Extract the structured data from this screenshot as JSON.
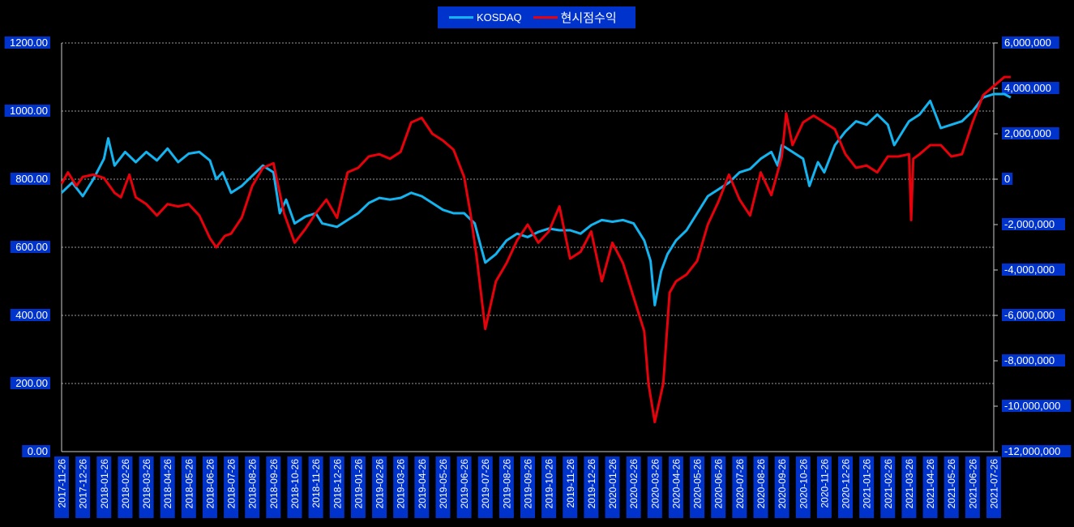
{
  "chart_data": {
    "type": "line",
    "title": "",
    "legend_position": "top-center",
    "grid": true,
    "colors": {
      "background": "#000000",
      "label_box": "#0033cc",
      "KOSDAQ": "#14b4f0",
      "현시점수익": "#e8000b",
      "grid": "#d0d0d0"
    },
    "y_left": {
      "ylim": [
        0,
        1200
      ],
      "ticks": [
        "0.00",
        "200.00",
        "400.00",
        "600.00",
        "800.00",
        "1000.00",
        "1200.00"
      ]
    },
    "y_right": {
      "ylim": [
        -12000000,
        6000000
      ],
      "ticks": [
        "-12,000,000",
        "-10,000,000",
        "-8,000,000",
        "-6,000,000",
        "-4,000,000",
        "-2,000,000",
        "0",
        "2,000,000",
        "4,000,000",
        "6,000,000"
      ]
    },
    "x_ticks": [
      "2017-11-26",
      "2017-12-26",
      "2018-01-26",
      "2018-02-26",
      "2018-03-26",
      "2018-04-26",
      "2018-05-26",
      "2018-06-26",
      "2018-07-26",
      "2018-08-26",
      "2018-09-26",
      "2018-10-26",
      "2018-11-26",
      "2018-12-26",
      "2019-01-26",
      "2019-02-26",
      "2019-03-26",
      "2019-04-26",
      "2019-05-26",
      "2019-06-26",
      "2019-07-26",
      "2019-08-26",
      "2019-09-26",
      "2019-10-26",
      "2019-11-26",
      "2019-12-26",
      "2020-01-26",
      "2020-02-26",
      "2020-03-26",
      "2020-04-26",
      "2020-05-26",
      "2020-06-26",
      "2020-07-26",
      "2020-08-26",
      "2020-09-26",
      "2020-10-26",
      "2020-11-26",
      "2020-12-26",
      "2021-01-26",
      "2021-02-26",
      "2021-03-26",
      "2021-04-26",
      "2021-05-26",
      "2021-06-26",
      "2021-07-26"
    ],
    "series": [
      {
        "name": "KOSDAQ",
        "axis": "left",
        "color": "#14b4f0",
        "points": [
          [
            0,
            760
          ],
          [
            0.5,
            790
          ],
          [
            1,
            750
          ],
          [
            1.5,
            800
          ],
          [
            2,
            860
          ],
          [
            2.2,
            920
          ],
          [
            2.5,
            840
          ],
          [
            3,
            880
          ],
          [
            3.5,
            850
          ],
          [
            4,
            880
          ],
          [
            4.5,
            855
          ],
          [
            5,
            890
          ],
          [
            5.5,
            850
          ],
          [
            6,
            875
          ],
          [
            6.5,
            880
          ],
          [
            7,
            855
          ],
          [
            7.3,
            800
          ],
          [
            7.6,
            820
          ],
          [
            8,
            760
          ],
          [
            8.5,
            780
          ],
          [
            9,
            810
          ],
          [
            9.5,
            840
          ],
          [
            10,
            820
          ],
          [
            10.3,
            700
          ],
          [
            10.6,
            740
          ],
          [
            11,
            670
          ],
          [
            11.5,
            690
          ],
          [
            12,
            700
          ],
          [
            12.3,
            670
          ],
          [
            13,
            660
          ],
          [
            13.5,
            680
          ],
          [
            14,
            700
          ],
          [
            14.5,
            730
          ],
          [
            15,
            745
          ],
          [
            15.5,
            740
          ],
          [
            16,
            745
          ],
          [
            16.5,
            760
          ],
          [
            17,
            750
          ],
          [
            17.5,
            730
          ],
          [
            18,
            710
          ],
          [
            18.5,
            700
          ],
          [
            19,
            700
          ],
          [
            19.5,
            670
          ],
          [
            19.8,
            600
          ],
          [
            20,
            555
          ],
          [
            20.5,
            580
          ],
          [
            21,
            620
          ],
          [
            21.5,
            640
          ],
          [
            22,
            630
          ],
          [
            22.5,
            645
          ],
          [
            23,
            655
          ],
          [
            23.5,
            650
          ],
          [
            24,
            650
          ],
          [
            24.5,
            640
          ],
          [
            25,
            665
          ],
          [
            25.5,
            680
          ],
          [
            26,
            675
          ],
          [
            26.5,
            680
          ],
          [
            27,
            670
          ],
          [
            27.5,
            620
          ],
          [
            27.8,
            560
          ],
          [
            28,
            430
          ],
          [
            28.3,
            530
          ],
          [
            28.6,
            580
          ],
          [
            29,
            620
          ],
          [
            29.5,
            650
          ],
          [
            30,
            700
          ],
          [
            30.5,
            750
          ],
          [
            31,
            770
          ],
          [
            31.5,
            790
          ],
          [
            32,
            820
          ],
          [
            32.5,
            830
          ],
          [
            33,
            860
          ],
          [
            33.5,
            880
          ],
          [
            33.8,
            840
          ],
          [
            34,
            900
          ],
          [
            34.5,
            880
          ],
          [
            35,
            860
          ],
          [
            35.3,
            780
          ],
          [
            35.7,
            850
          ],
          [
            36,
            820
          ],
          [
            36.5,
            900
          ],
          [
            37,
            940
          ],
          [
            37.5,
            970
          ],
          [
            38,
            960
          ],
          [
            38.5,
            990
          ],
          [
            39,
            960
          ],
          [
            39.3,
            900
          ],
          [
            39.8,
            950
          ],
          [
            40,
            970
          ],
          [
            40.5,
            990
          ],
          [
            41,
            1030
          ],
          [
            41.5,
            950
          ],
          [
            42,
            960
          ],
          [
            42.5,
            970
          ],
          [
            43,
            1000
          ],
          [
            43.5,
            1040
          ],
          [
            44,
            1050
          ],
          [
            44.5,
            1050
          ],
          [
            44.8,
            1040
          ]
        ]
      },
      {
        "name": "현시점수익",
        "axis": "right",
        "color": "#e8000b",
        "points": [
          [
            0,
            -200000
          ],
          [
            0.3,
            300000
          ],
          [
            0.7,
            -300000
          ],
          [
            1,
            100000
          ],
          [
            1.5,
            200000
          ],
          [
            2,
            50000
          ],
          [
            2.5,
            -600000
          ],
          [
            2.8,
            -800000
          ],
          [
            3.2,
            200000
          ],
          [
            3.5,
            -800000
          ],
          [
            4,
            -1100000
          ],
          [
            4.5,
            -1600000
          ],
          [
            5,
            -1100000
          ],
          [
            5.5,
            -1200000
          ],
          [
            6,
            -1100000
          ],
          [
            6.5,
            -1600000
          ],
          [
            7,
            -2600000
          ],
          [
            7.3,
            -3000000
          ],
          [
            7.7,
            -2500000
          ],
          [
            8,
            -2400000
          ],
          [
            8.5,
            -1700000
          ],
          [
            9,
            -300000
          ],
          [
            9.5,
            500000
          ],
          [
            10,
            700000
          ],
          [
            10.5,
            -1500000
          ],
          [
            11,
            -2800000
          ],
          [
            11.5,
            -2200000
          ],
          [
            12,
            -1500000
          ],
          [
            12.5,
            -900000
          ],
          [
            13,
            -1700000
          ],
          [
            13.5,
            300000
          ],
          [
            14,
            500000
          ],
          [
            14.5,
            1000000
          ],
          [
            15,
            1100000
          ],
          [
            15.5,
            900000
          ],
          [
            16,
            1200000
          ],
          [
            16.5,
            2500000
          ],
          [
            17,
            2700000
          ],
          [
            17.5,
            2000000
          ],
          [
            18,
            1700000
          ],
          [
            18.5,
            1300000
          ],
          [
            19,
            100000
          ],
          [
            19.3,
            -1500000
          ],
          [
            19.6,
            -3500000
          ],
          [
            20,
            -6600000
          ],
          [
            20.5,
            -4500000
          ],
          [
            21,
            -3700000
          ],
          [
            21.5,
            -2700000
          ],
          [
            22,
            -2000000
          ],
          [
            22.5,
            -2800000
          ],
          [
            23,
            -2300000
          ],
          [
            23.5,
            -1200000
          ],
          [
            24,
            -3500000
          ],
          [
            24.5,
            -3200000
          ],
          [
            25,
            -2300000
          ],
          [
            25.5,
            -4500000
          ],
          [
            26,
            -2800000
          ],
          [
            26.5,
            -3700000
          ],
          [
            27,
            -5200000
          ],
          [
            27.5,
            -6700000
          ],
          [
            27.7,
            -9000000
          ],
          [
            28,
            -10700000
          ],
          [
            28.4,
            -9000000
          ],
          [
            28.7,
            -5000000
          ],
          [
            29,
            -4500000
          ],
          [
            29.5,
            -4200000
          ],
          [
            30,
            -3600000
          ],
          [
            30.5,
            -2000000
          ],
          [
            31,
            -1000000
          ],
          [
            31.5,
            200000
          ],
          [
            32,
            -900000
          ],
          [
            32.5,
            -1600000
          ],
          [
            33,
            300000
          ],
          [
            33.5,
            -700000
          ],
          [
            34,
            1000000
          ],
          [
            34.2,
            2900000
          ],
          [
            34.5,
            1500000
          ],
          [
            35,
            2500000
          ],
          [
            35.5,
            2800000
          ],
          [
            36,
            2500000
          ],
          [
            36.5,
            2200000
          ],
          [
            37,
            1100000
          ],
          [
            37.5,
            500000
          ],
          [
            38,
            600000
          ],
          [
            38.5,
            300000
          ],
          [
            39,
            1000000
          ],
          [
            39.5,
            1000000
          ],
          [
            40,
            1100000
          ],
          [
            40.1,
            -1800000
          ],
          [
            40.2,
            900000
          ],
          [
            40.5,
            1100000
          ],
          [
            41,
            1500000
          ],
          [
            41.5,
            1500000
          ],
          [
            42,
            1000000
          ],
          [
            42.5,
            1100000
          ],
          [
            43,
            2500000
          ],
          [
            43.5,
            3700000
          ],
          [
            44,
            4100000
          ],
          [
            44.5,
            4500000
          ],
          [
            44.8,
            4500000
          ]
        ]
      }
    ]
  }
}
